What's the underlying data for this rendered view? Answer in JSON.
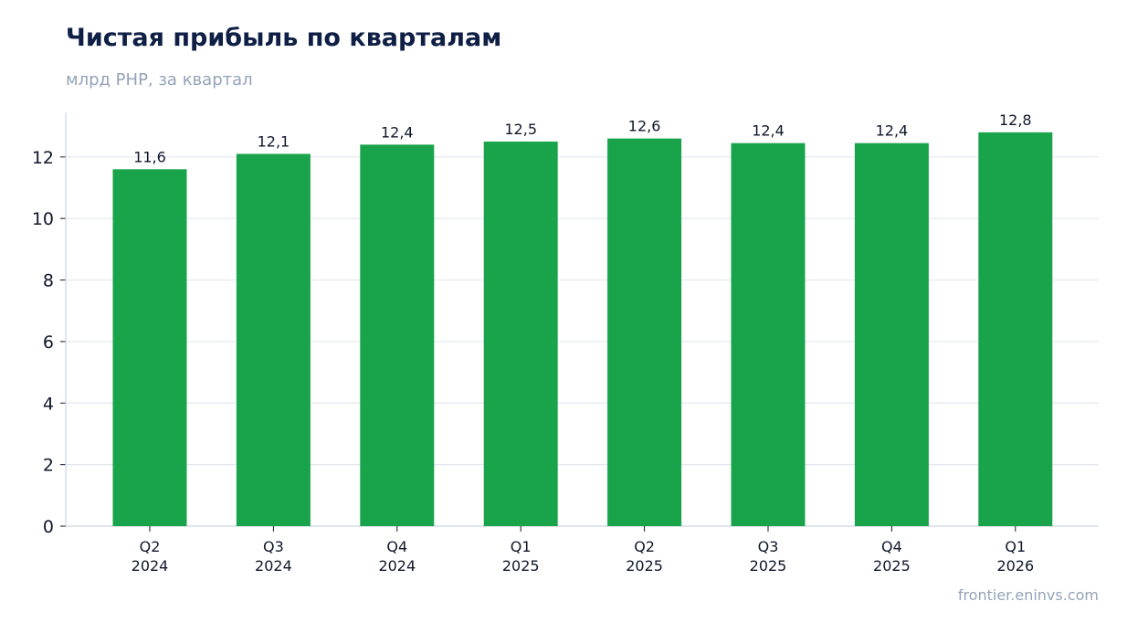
{
  "header": {
    "title": "Чистая прибыль по кварталам",
    "subtitle": "млрд PHP, за квартал"
  },
  "footer": {
    "source": "frontier.eninvs.com"
  },
  "colors": {
    "bar": "#19a34a",
    "grid": "#e2e8f0",
    "axis": "#cbd5e1",
    "text": "#0f172a",
    "title": "#0f1f45",
    "muted": "#94a3b8"
  },
  "chart_data": {
    "type": "bar",
    "categories": [
      [
        "Q2",
        "2024"
      ],
      [
        "Q3",
        "2024"
      ],
      [
        "Q4",
        "2024"
      ],
      [
        "Q1",
        "2025"
      ],
      [
        "Q2",
        "2025"
      ],
      [
        "Q3",
        "2025"
      ],
      [
        "Q4",
        "2025"
      ],
      [
        "Q1",
        "2026"
      ]
    ],
    "values": [
      11.6,
      12.1,
      12.4,
      12.5,
      12.6,
      12.45,
      12.45,
      12.8
    ],
    "value_labels": [
      "11,6",
      "12,1",
      "12,4",
      "12,5",
      "12,6",
      "12,4",
      "12,4",
      "12,8"
    ],
    "yticks": [
      0,
      2,
      4,
      6,
      8,
      10,
      12
    ],
    "ylim": [
      0,
      13.45
    ],
    "xlabel": "",
    "ylabel": "",
    "grid": "horizontal",
    "legend": "none"
  }
}
